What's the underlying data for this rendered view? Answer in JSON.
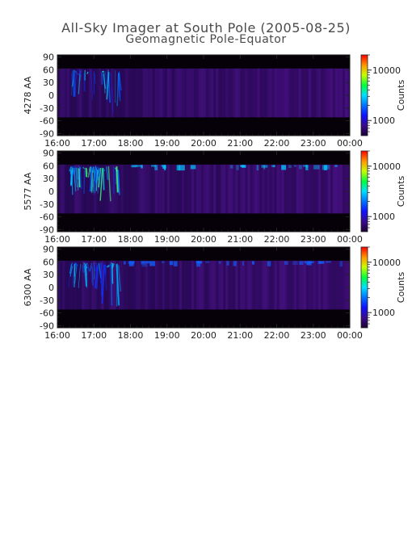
{
  "title": "All-Sky Imager at South Pole (2005-08-25)",
  "subtitle": "Geomagnetic Pole-Equator",
  "chart_data": [
    {
      "type": "heatmap",
      "ylabel": "4278 AA",
      "x_ticks": [
        "16:00",
        "17:00",
        "18:00",
        "19:00",
        "20:00",
        "21:00",
        "22:00",
        "23:00",
        "00:00"
      ],
      "y_ticks": [
        90,
        60,
        30,
        0,
        -30,
        -60,
        -90
      ],
      "ylim": [
        -95,
        95
      ],
      "colorbar": {
        "label": "Counts",
        "ticks": [
          "10000",
          "1000"
        ],
        "scale": "log"
      },
      "intensity": 0.45
    },
    {
      "type": "heatmap",
      "ylabel": "5577 AA",
      "x_ticks": [
        "16:00",
        "17:00",
        "18:00",
        "19:00",
        "20:00",
        "21:00",
        "22:00",
        "23:00",
        "00:00"
      ],
      "y_ticks": [
        90,
        60,
        30,
        0,
        -30,
        -60,
        -90
      ],
      "ylim": [
        -95,
        95
      ],
      "colorbar": {
        "label": "Counts",
        "ticks": [
          "10000",
          "1000"
        ],
        "scale": "log"
      },
      "intensity": 0.85
    },
    {
      "type": "heatmap",
      "ylabel": "6300 AA",
      "x_ticks": [
        "16:00",
        "17:00",
        "18:00",
        "19:00",
        "20:00",
        "21:00",
        "22:00",
        "23:00",
        "00:00"
      ],
      "y_ticks": [
        90,
        60,
        30,
        0,
        -30,
        -60,
        -90
      ],
      "ylim": [
        -95,
        95
      ],
      "colorbar": {
        "label": "Counts",
        "ticks": [
          "10000",
          "1000"
        ],
        "scale": "log"
      },
      "intensity": 0.65
    }
  ]
}
